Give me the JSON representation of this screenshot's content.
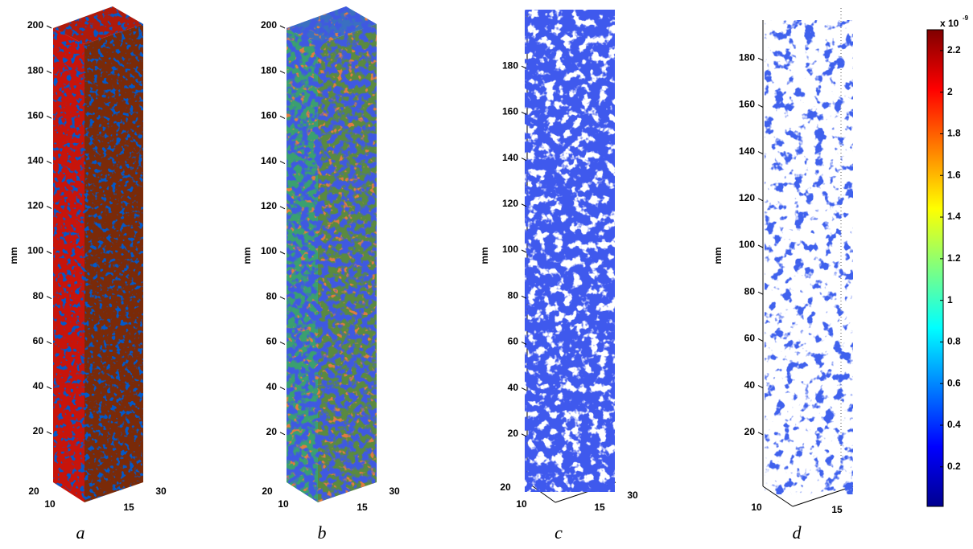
{
  "chart_data": [
    {
      "type": "volume",
      "label": "a",
      "zlabel": "mm",
      "zlim": [
        0,
        200
      ],
      "zticks": [
        20,
        40,
        60,
        80,
        100,
        120,
        140,
        160,
        180,
        200
      ],
      "yticks": [
        20,
        10
      ],
      "xticks": [
        15,
        30
      ]
    },
    {
      "type": "volume",
      "label": "b",
      "zlabel": "mm",
      "zlim": [
        0,
        200
      ],
      "zticks": [
        20,
        40,
        60,
        80,
        100,
        120,
        140,
        160,
        180,
        200
      ],
      "yticks": [
        20,
        10
      ],
      "xticks": [
        15,
        30
      ]
    },
    {
      "type": "volume",
      "label": "c",
      "zlabel": "mm",
      "zlim": [
        0,
        200
      ],
      "zticks": [
        20,
        40,
        60,
        80,
        100,
        120,
        140,
        160,
        180
      ],
      "yticks": [
        20,
        10
      ],
      "xticks": [
        15,
        30
      ]
    },
    {
      "type": "volume",
      "label": "d",
      "zlabel": "mm",
      "zlim": [
        0,
        200
      ],
      "zticks": [
        20,
        40,
        60,
        80,
        100,
        120,
        140,
        160,
        180
      ],
      "yticks": [
        10
      ],
      "xticks": [
        15
      ]
    },
    {
      "type": "colorbar",
      "label": "x 10",
      "label_exponent": "-9",
      "clim": [
        0.01,
        2.3
      ],
      "ticks": [
        0.2,
        0.4,
        0.6,
        0.8,
        1,
        1.2,
        1.4,
        1.6,
        1.8,
        2,
        2.2
      ]
    }
  ]
}
